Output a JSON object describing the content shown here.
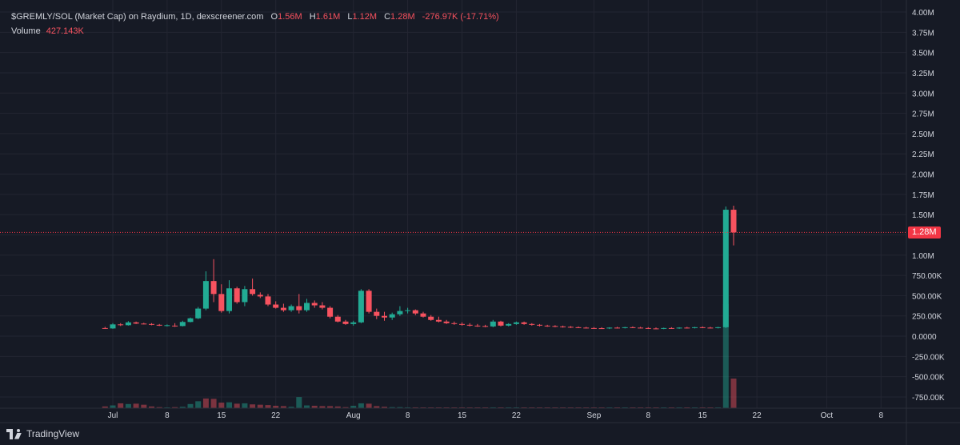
{
  "legend": {
    "symbol": "$GREMLY/SOL (Market Cap) on Raydium, 1D, dexscreener.com",
    "o_label": "O",
    "o_value": "1.56M",
    "h_label": "H",
    "h_value": "1.61M",
    "l_label": "L",
    "l_value": "1.12M",
    "c_label": "C",
    "c_value": "1.28M",
    "change": "-276.97K (-17.71%)",
    "volume_label": "Volume",
    "volume_value": "427.143K"
  },
  "last_price": "1.28M",
  "branding": "TradingView",
  "colors": {
    "up": "#22ab94",
    "down": "#f7525f",
    "background": "#161a25",
    "grid": "#232632",
    "text": "#d1d4dc",
    "badge": "#f23645"
  },
  "chart_data": {
    "type": "candlestick",
    "title": "$GREMLY/SOL (Market Cap) on Raydium, 1D, dexscreener.com",
    "y_ticks": [
      "4.00M",
      "3.75M",
      "3.50M",
      "3.25M",
      "3.00M",
      "2.75M",
      "2.50M",
      "2.25M",
      "2.00M",
      "1.75M",
      "1.50M",
      "1.25M",
      "1.00M",
      "750.00K",
      "500.00K",
      "250.00K",
      "0.0000",
      "-250.00K",
      "-500.00K",
      "-750.00K"
    ],
    "ylim": [
      -850000,
      4000000
    ],
    "x_labels": [
      "Jul",
      "8",
      "15",
      "22",
      "Aug",
      "8",
      "15",
      "22",
      "Sep",
      "8",
      "15",
      "22",
      "Oct",
      "8"
    ],
    "x_label_days": [
      0,
      7,
      14,
      21,
      31,
      38,
      45,
      52,
      62,
      69,
      76,
      83,
      92,
      99
    ],
    "last_price_value": 1280000,
    "candles": [
      {
        "day": -1,
        "o": 100000,
        "h": 115000,
        "l": 90000,
        "c": 95000
      },
      {
        "day": 0,
        "o": 95000,
        "h": 160000,
        "l": 90000,
        "c": 145000
      },
      {
        "day": 1,
        "o": 145000,
        "h": 160000,
        "l": 125000,
        "c": 140000
      },
      {
        "day": 2,
        "o": 135000,
        "h": 185000,
        "l": 130000,
        "c": 170000
      },
      {
        "day": 3,
        "o": 170000,
        "h": 180000,
        "l": 150000,
        "c": 155000
      },
      {
        "day": 4,
        "o": 155000,
        "h": 165000,
        "l": 145000,
        "c": 150000
      },
      {
        "day": 5,
        "o": 150000,
        "h": 160000,
        "l": 135000,
        "c": 140000
      },
      {
        "day": 6,
        "o": 140000,
        "h": 150000,
        "l": 125000,
        "c": 130000
      },
      {
        "day": 7,
        "o": 130000,
        "h": 145000,
        "l": 120000,
        "c": 135000
      },
      {
        "day": 8,
        "o": 130000,
        "h": 160000,
        "l": 115000,
        "c": 125000
      },
      {
        "day": 9,
        "o": 125000,
        "h": 190000,
        "l": 120000,
        "c": 175000
      },
      {
        "day": 10,
        "o": 175000,
        "h": 230000,
        "l": 170000,
        "c": 220000
      },
      {
        "day": 11,
        "o": 220000,
        "h": 360000,
        "l": 210000,
        "c": 340000
      },
      {
        "day": 12,
        "o": 340000,
        "h": 800000,
        "l": 320000,
        "c": 680000
      },
      {
        "day": 13,
        "o": 680000,
        "h": 950000,
        "l": 420000,
        "c": 520000
      },
      {
        "day": 14,
        "o": 520000,
        "h": 640000,
        "l": 290000,
        "c": 310000
      },
      {
        "day": 15,
        "o": 310000,
        "h": 690000,
        "l": 280000,
        "c": 590000
      },
      {
        "day": 16,
        "o": 590000,
        "h": 610000,
        "l": 400000,
        "c": 420000
      },
      {
        "day": 17,
        "o": 420000,
        "h": 620000,
        "l": 370000,
        "c": 580000
      },
      {
        "day": 18,
        "o": 580000,
        "h": 710000,
        "l": 500000,
        "c": 520000
      },
      {
        "day": 19,
        "o": 510000,
        "h": 540000,
        "l": 470000,
        "c": 490000
      },
      {
        "day": 20,
        "o": 490000,
        "h": 520000,
        "l": 370000,
        "c": 390000
      },
      {
        "day": 21,
        "o": 390000,
        "h": 430000,
        "l": 340000,
        "c": 350000
      },
      {
        "day": 22,
        "o": 350000,
        "h": 400000,
        "l": 300000,
        "c": 320000
      },
      {
        "day": 23,
        "o": 320000,
        "h": 390000,
        "l": 300000,
        "c": 370000
      },
      {
        "day": 24,
        "o": 370000,
        "h": 520000,
        "l": 280000,
        "c": 320000
      },
      {
        "day": 25,
        "o": 320000,
        "h": 460000,
        "l": 300000,
        "c": 410000
      },
      {
        "day": 26,
        "o": 410000,
        "h": 440000,
        "l": 350000,
        "c": 380000
      },
      {
        "day": 27,
        "o": 380000,
        "h": 420000,
        "l": 330000,
        "c": 350000
      },
      {
        "day": 28,
        "o": 350000,
        "h": 370000,
        "l": 220000,
        "c": 240000
      },
      {
        "day": 29,
        "o": 240000,
        "h": 260000,
        "l": 170000,
        "c": 180000
      },
      {
        "day": 30,
        "o": 180000,
        "h": 200000,
        "l": 140000,
        "c": 150000
      },
      {
        "day": 31,
        "o": 150000,
        "h": 190000,
        "l": 130000,
        "c": 170000
      },
      {
        "day": 32,
        "o": 170000,
        "h": 580000,
        "l": 160000,
        "c": 560000
      },
      {
        "day": 33,
        "o": 560000,
        "h": 580000,
        "l": 280000,
        "c": 300000
      },
      {
        "day": 34,
        "o": 300000,
        "h": 340000,
        "l": 210000,
        "c": 250000
      },
      {
        "day": 35,
        "o": 250000,
        "h": 300000,
        "l": 190000,
        "c": 230000
      },
      {
        "day": 36,
        "o": 230000,
        "h": 290000,
        "l": 200000,
        "c": 270000
      },
      {
        "day": 37,
        "o": 270000,
        "h": 370000,
        "l": 250000,
        "c": 310000
      },
      {
        "day": 38,
        "o": 310000,
        "h": 350000,
        "l": 280000,
        "c": 320000
      },
      {
        "day": 39,
        "o": 320000,
        "h": 330000,
        "l": 260000,
        "c": 280000
      },
      {
        "day": 40,
        "o": 280000,
        "h": 300000,
        "l": 230000,
        "c": 240000
      },
      {
        "day": 41,
        "o": 240000,
        "h": 260000,
        "l": 190000,
        "c": 200000
      },
      {
        "day": 42,
        "o": 200000,
        "h": 240000,
        "l": 170000,
        "c": 180000
      },
      {
        "day": 43,
        "o": 180000,
        "h": 200000,
        "l": 150000,
        "c": 160000
      },
      {
        "day": 44,
        "o": 160000,
        "h": 180000,
        "l": 140000,
        "c": 150000
      },
      {
        "day": 45,
        "o": 150000,
        "h": 170000,
        "l": 130000,
        "c": 140000
      },
      {
        "day": 46,
        "o": 140000,
        "h": 160000,
        "l": 120000,
        "c": 130000
      },
      {
        "day": 47,
        "o": 130000,
        "h": 150000,
        "l": 115000,
        "c": 125000
      },
      {
        "day": 48,
        "o": 125000,
        "h": 140000,
        "l": 110000,
        "c": 120000
      },
      {
        "day": 49,
        "o": 120000,
        "h": 200000,
        "l": 110000,
        "c": 180000
      },
      {
        "day": 50,
        "o": 180000,
        "h": 190000,
        "l": 120000,
        "c": 130000
      },
      {
        "day": 51,
        "o": 130000,
        "h": 160000,
        "l": 120000,
        "c": 150000
      },
      {
        "day": 52,
        "o": 150000,
        "h": 180000,
        "l": 140000,
        "c": 170000
      },
      {
        "day": 53,
        "o": 170000,
        "h": 180000,
        "l": 140000,
        "c": 150000
      },
      {
        "day": 54,
        "o": 150000,
        "h": 160000,
        "l": 130000,
        "c": 140000
      },
      {
        "day": 55,
        "o": 140000,
        "h": 150000,
        "l": 120000,
        "c": 130000
      },
      {
        "day": 56,
        "o": 130000,
        "h": 140000,
        "l": 115000,
        "c": 125000
      },
      {
        "day": 57,
        "o": 125000,
        "h": 135000,
        "l": 110000,
        "c": 120000
      },
      {
        "day": 58,
        "o": 120000,
        "h": 130000,
        "l": 105000,
        "c": 115000
      },
      {
        "day": 59,
        "o": 115000,
        "h": 125000,
        "l": 100000,
        "c": 110000
      },
      {
        "day": 60,
        "o": 110000,
        "h": 120000,
        "l": 100000,
        "c": 105000
      },
      {
        "day": 61,
        "o": 105000,
        "h": 115000,
        "l": 95000,
        "c": 100000
      },
      {
        "day": 62,
        "o": 100000,
        "h": 112000,
        "l": 92000,
        "c": 98000
      },
      {
        "day": 63,
        "o": 98000,
        "h": 110000,
        "l": 90000,
        "c": 95000
      },
      {
        "day": 64,
        "o": 95000,
        "h": 110000,
        "l": 88000,
        "c": 105000
      },
      {
        "day": 65,
        "o": 105000,
        "h": 115000,
        "l": 95000,
        "c": 100000
      },
      {
        "day": 66,
        "o": 100000,
        "h": 115000,
        "l": 95000,
        "c": 110000
      },
      {
        "day": 67,
        "o": 110000,
        "h": 120000,
        "l": 100000,
        "c": 105000
      },
      {
        "day": 68,
        "o": 105000,
        "h": 115000,
        "l": 95000,
        "c": 100000
      },
      {
        "day": 69,
        "o": 100000,
        "h": 110000,
        "l": 90000,
        "c": 95000
      },
      {
        "day": 70,
        "o": 95000,
        "h": 108000,
        "l": 88000,
        "c": 92000
      },
      {
        "day": 71,
        "o": 92000,
        "h": 105000,
        "l": 86000,
        "c": 100000
      },
      {
        "day": 72,
        "o": 100000,
        "h": 110000,
        "l": 90000,
        "c": 95000
      },
      {
        "day": 73,
        "o": 95000,
        "h": 110000,
        "l": 90000,
        "c": 105000
      },
      {
        "day": 74,
        "o": 105000,
        "h": 115000,
        "l": 95000,
        "c": 100000
      },
      {
        "day": 75,
        "o": 100000,
        "h": 115000,
        "l": 95000,
        "c": 110000
      },
      {
        "day": 76,
        "o": 110000,
        "h": 120000,
        "l": 100000,
        "c": 105000
      },
      {
        "day": 77,
        "o": 105000,
        "h": 115000,
        "l": 95000,
        "c": 100000
      },
      {
        "day": 78,
        "o": 100000,
        "h": 115000,
        "l": 95000,
        "c": 110000
      },
      {
        "day": 79,
        "o": 110000,
        "h": 1600000,
        "l": 100000,
        "c": 1560000
      },
      {
        "day": 80,
        "o": 1560000,
        "h": 1610000,
        "l": 1120000,
        "c": 1280000
      }
    ],
    "volume": [
      {
        "day": -1,
        "v": 25000,
        "dir": "down"
      },
      {
        "day": 0,
        "v": 40000,
        "dir": "up"
      },
      {
        "day": 1,
        "v": 70000,
        "dir": "down"
      },
      {
        "day": 2,
        "v": 60000,
        "dir": "up"
      },
      {
        "day": 3,
        "v": 65000,
        "dir": "down"
      },
      {
        "day": 4,
        "v": 50000,
        "dir": "down"
      },
      {
        "day": 5,
        "v": 25000,
        "dir": "down"
      },
      {
        "day": 6,
        "v": 15000,
        "dir": "down"
      },
      {
        "day": 7,
        "v": 10000,
        "dir": "up"
      },
      {
        "day": 8,
        "v": 15000,
        "dir": "down"
      },
      {
        "day": 9,
        "v": 20000,
        "dir": "up"
      },
      {
        "day": 10,
        "v": 60000,
        "dir": "up"
      },
      {
        "day": 11,
        "v": 100000,
        "dir": "up"
      },
      {
        "day": 12,
        "v": 140000,
        "dir": "down"
      },
      {
        "day": 13,
        "v": 135000,
        "dir": "down"
      },
      {
        "day": 14,
        "v": 80000,
        "dir": "down"
      },
      {
        "day": 15,
        "v": 85000,
        "dir": "up"
      },
      {
        "day": 16,
        "v": 65000,
        "dir": "down"
      },
      {
        "day": 17,
        "v": 70000,
        "dir": "up"
      },
      {
        "day": 18,
        "v": 55000,
        "dir": "down"
      },
      {
        "day": 19,
        "v": 50000,
        "dir": "down"
      },
      {
        "day": 20,
        "v": 45000,
        "dir": "down"
      },
      {
        "day": 21,
        "v": 35000,
        "dir": "down"
      },
      {
        "day": 22,
        "v": 30000,
        "dir": "down"
      },
      {
        "day": 23,
        "v": 20000,
        "dir": "up"
      },
      {
        "day": 24,
        "v": 160000,
        "dir": "up"
      },
      {
        "day": 25,
        "v": 40000,
        "dir": "up"
      },
      {
        "day": 26,
        "v": 35000,
        "dir": "down"
      },
      {
        "day": 27,
        "v": 30000,
        "dir": "down"
      },
      {
        "day": 28,
        "v": 30000,
        "dir": "down"
      },
      {
        "day": 29,
        "v": 25000,
        "dir": "down"
      },
      {
        "day": 30,
        "v": 15000,
        "dir": "down"
      },
      {
        "day": 31,
        "v": 35000,
        "dir": "up"
      },
      {
        "day": 32,
        "v": 70000,
        "dir": "up"
      },
      {
        "day": 33,
        "v": 65000,
        "dir": "down"
      },
      {
        "day": 34,
        "v": 30000,
        "dir": "down"
      },
      {
        "day": 35,
        "v": 20000,
        "dir": "down"
      },
      {
        "day": 36,
        "v": 15000,
        "dir": "up"
      },
      {
        "day": 37,
        "v": 15000,
        "dir": "up"
      },
      {
        "day": 38,
        "v": 12000,
        "dir": "up"
      },
      {
        "day": 39,
        "v": 12000,
        "dir": "down"
      },
      {
        "day": 40,
        "v": 10000,
        "dir": "down"
      },
      {
        "day": 41,
        "v": 10000,
        "dir": "down"
      },
      {
        "day": 42,
        "v": 8000,
        "dir": "down"
      },
      {
        "day": 43,
        "v": 8000,
        "dir": "down"
      },
      {
        "day": 44,
        "v": 6000,
        "dir": "down"
      },
      {
        "day": 45,
        "v": 6000,
        "dir": "down"
      },
      {
        "day": 46,
        "v": 5000,
        "dir": "down"
      },
      {
        "day": 47,
        "v": 5000,
        "dir": "down"
      },
      {
        "day": 48,
        "v": 5000,
        "dir": "down"
      },
      {
        "day": 49,
        "v": 12000,
        "dir": "up"
      },
      {
        "day": 50,
        "v": 10000,
        "dir": "down"
      },
      {
        "day": 51,
        "v": 8000,
        "dir": "up"
      },
      {
        "day": 52,
        "v": 6000,
        "dir": "up"
      },
      {
        "day": 53,
        "v": 5000,
        "dir": "down"
      },
      {
        "day": 54,
        "v": 5000,
        "dir": "down"
      },
      {
        "day": 55,
        "v": 4000,
        "dir": "down"
      },
      {
        "day": 56,
        "v": 4000,
        "dir": "down"
      },
      {
        "day": 57,
        "v": 3000,
        "dir": "down"
      },
      {
        "day": 58,
        "v": 3000,
        "dir": "down"
      },
      {
        "day": 59,
        "v": 3000,
        "dir": "down"
      },
      {
        "day": 60,
        "v": 3000,
        "dir": "down"
      },
      {
        "day": 61,
        "v": 3000,
        "dir": "down"
      },
      {
        "day": 62,
        "v": 3000,
        "dir": "down"
      },
      {
        "day": 63,
        "v": 3000,
        "dir": "down"
      },
      {
        "day": 64,
        "v": 3000,
        "dir": "up"
      },
      {
        "day": 65,
        "v": 3000,
        "dir": "down"
      },
      {
        "day": 66,
        "v": 3000,
        "dir": "up"
      },
      {
        "day": 67,
        "v": 3000,
        "dir": "down"
      },
      {
        "day": 68,
        "v": 3000,
        "dir": "down"
      },
      {
        "day": 69,
        "v": 3000,
        "dir": "down"
      },
      {
        "day": 70,
        "v": 3000,
        "dir": "down"
      },
      {
        "day": 71,
        "v": 3000,
        "dir": "up"
      },
      {
        "day": 72,
        "v": 3000,
        "dir": "down"
      },
      {
        "day": 73,
        "v": 3000,
        "dir": "up"
      },
      {
        "day": 74,
        "v": 3000,
        "dir": "down"
      },
      {
        "day": 75,
        "v": 3000,
        "dir": "up"
      },
      {
        "day": 76,
        "v": 3000,
        "dir": "down"
      },
      {
        "day": 77,
        "v": 3000,
        "dir": "down"
      },
      {
        "day": 78,
        "v": 3000,
        "dir": "up"
      },
      {
        "day": 79,
        "v": 1500000,
        "dir": "up"
      },
      {
        "day": 80,
        "v": 427143,
        "dir": "down"
      }
    ]
  }
}
